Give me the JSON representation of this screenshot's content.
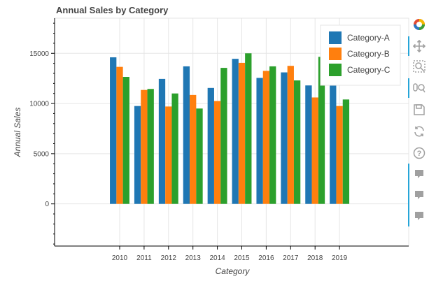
{
  "chart_data": {
    "type": "bar",
    "title": "Annual Sales by Category",
    "xlabel": "Category",
    "ylabel": "Annual Sales",
    "categories": [
      "2010",
      "2011",
      "2012",
      "2013",
      "2014",
      "2015",
      "2016",
      "2017",
      "2018",
      "2019"
    ],
    "series": [
      {
        "name": "Category-A",
        "color": "#1f77b4",
        "values": [
          14600,
          9750,
          12450,
          13700,
          11550,
          14450,
          12550,
          13100,
          11800,
          11850
        ]
      },
      {
        "name": "Category-B",
        "color": "#ff7f0e",
        "values": [
          13650,
          11350,
          9700,
          10850,
          10250,
          14050,
          13250,
          13750,
          10600,
          9750
        ]
      },
      {
        "name": "Category-C",
        "color": "#2ca02c",
        "values": [
          12650,
          11450,
          11000,
          9500,
          13550,
          15000,
          13700,
          12300,
          14650,
          10400
        ]
      }
    ],
    "ylim": [
      -4200,
      18500
    ],
    "yticks": [
      0,
      5000,
      10000,
      15000
    ],
    "grid": true,
    "legend": "top-right"
  },
  "toolbar": {
    "icons": [
      "bokeh-logo-icon",
      "pan-icon",
      "box-zoom-icon",
      "wheel-zoom-icon",
      "save-icon",
      "reset-icon",
      "help-icon",
      "hover-icon",
      "hover-icon",
      "hover-icon"
    ]
  }
}
